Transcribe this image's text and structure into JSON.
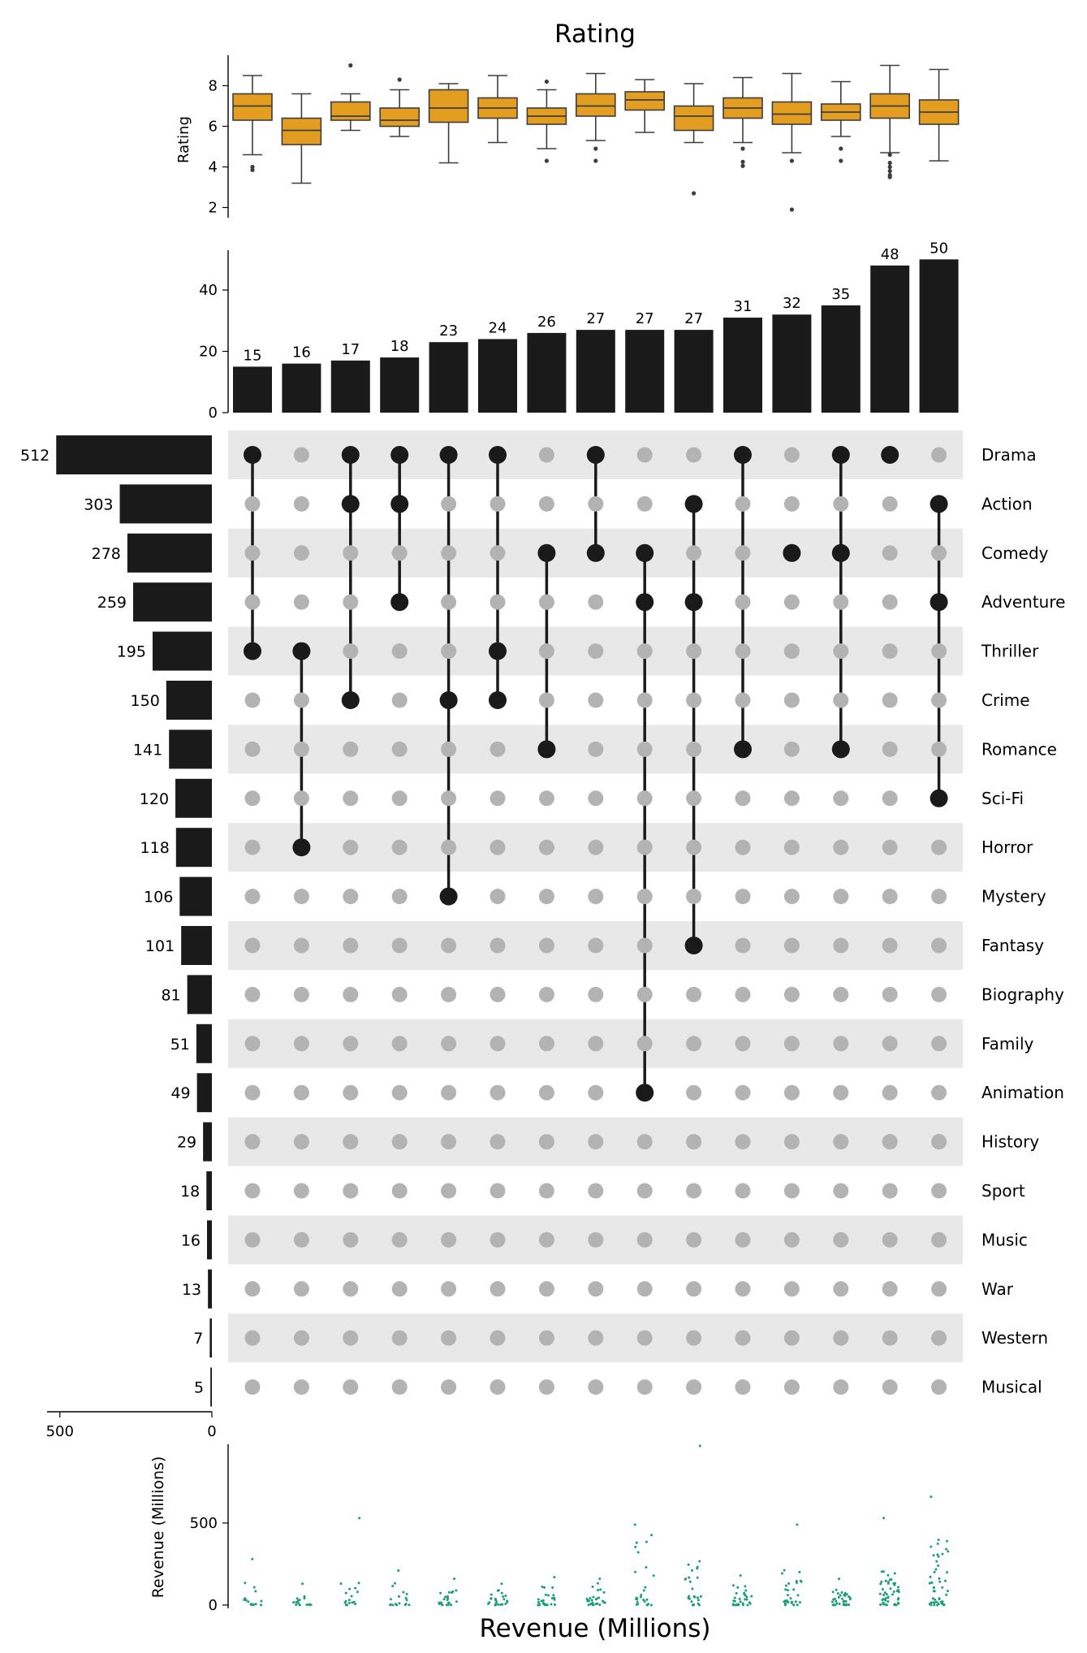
{
  "chart_data": [
    {
      "type": "box",
      "title": "Rating",
      "ylabel": "Rating",
      "ylim": [
        1.5,
        9.5
      ],
      "yticks": [
        2,
        4,
        6,
        8
      ],
      "color": "#e39e22",
      "boxes": [
        {
          "whislo": 4.6,
          "q1": 6.3,
          "med": 7.0,
          "q3": 7.6,
          "whishi": 8.5,
          "fliers": [
            4.0,
            3.85
          ]
        },
        {
          "whislo": 3.2,
          "q1": 5.1,
          "med": 5.8,
          "q3": 6.4,
          "whishi": 7.6,
          "fliers": []
        },
        {
          "whislo": 5.8,
          "q1": 6.3,
          "med": 6.5,
          "q3": 7.2,
          "whishi": 7.6,
          "fliers": [
            9.0
          ]
        },
        {
          "whislo": 5.5,
          "q1": 6.0,
          "med": 6.3,
          "q3": 6.9,
          "whishi": 7.8,
          "fliers": [
            8.3
          ]
        },
        {
          "whislo": 4.2,
          "q1": 6.2,
          "med": 6.9,
          "q3": 7.8,
          "whishi": 8.1,
          "fliers": []
        },
        {
          "whislo": 5.2,
          "q1": 6.4,
          "med": 6.9,
          "q3": 7.4,
          "whishi": 8.5,
          "fliers": []
        },
        {
          "whislo": 4.9,
          "q1": 6.1,
          "med": 6.5,
          "q3": 6.9,
          "whishi": 7.8,
          "fliers": [
            8.2,
            4.3
          ]
        },
        {
          "whislo": 5.3,
          "q1": 6.5,
          "med": 7.0,
          "q3": 7.6,
          "whishi": 8.6,
          "fliers": [
            4.9,
            4.3
          ]
        },
        {
          "whislo": 5.7,
          "q1": 6.8,
          "med": 7.3,
          "q3": 7.7,
          "whishi": 8.3,
          "fliers": []
        },
        {
          "whislo": 5.2,
          "q1": 5.8,
          "med": 6.5,
          "q3": 7.0,
          "whishi": 8.1,
          "fliers": [
            2.7
          ]
        },
        {
          "whislo": 5.2,
          "q1": 6.4,
          "med": 6.9,
          "q3": 7.4,
          "whishi": 8.4,
          "fliers": [
            4.9,
            4.25,
            4.05
          ]
        },
        {
          "whislo": 4.7,
          "q1": 6.1,
          "med": 6.6,
          "q3": 7.2,
          "whishi": 8.6,
          "fliers": [
            4.3,
            1.9
          ]
        },
        {
          "whislo": 5.5,
          "q1": 6.3,
          "med": 6.7,
          "q3": 7.1,
          "whishi": 8.2,
          "fliers": [
            4.9,
            4.3
          ]
        },
        {
          "whislo": 4.7,
          "q1": 6.4,
          "med": 7.0,
          "q3": 7.6,
          "whishi": 9.0,
          "fliers": [
            4.6,
            4.2,
            4.0,
            3.8,
            3.6,
            3.5
          ]
        },
        {
          "whislo": 4.3,
          "q1": 6.1,
          "med": 6.7,
          "q3": 7.3,
          "whishi": 8.8,
          "fliers": []
        }
      ]
    },
    {
      "type": "bar",
      "values": [
        15,
        16,
        17,
        18,
        23,
        24,
        26,
        27,
        27,
        27,
        31,
        32,
        35,
        48,
        50
      ],
      "ylim": [
        0,
        53
      ],
      "yticks": [
        0,
        20,
        40
      ],
      "color": "#1a1a1a"
    },
    {
      "type": "matrix",
      "sets": [
        "Drama",
        "Action",
        "Comedy",
        "Adventure",
        "Thriller",
        "Crime",
        "Romance",
        "Sci-Fi",
        "Horror",
        "Mystery",
        "Fantasy",
        "Biography",
        "Family",
        "Animation",
        "History",
        "Sport",
        "Music",
        "War",
        "Western",
        "Musical"
      ],
      "set_sizes": [
        512,
        303,
        278,
        259,
        195,
        150,
        141,
        120,
        118,
        106,
        101,
        81,
        51,
        49,
        29,
        18,
        16,
        13,
        7,
        5
      ],
      "size_ticks": [
        500,
        0
      ],
      "intersections": [
        [
          "Drama",
          "Thriller"
        ],
        [
          "Thriller",
          "Horror"
        ],
        [
          "Drama",
          "Action",
          "Crime"
        ],
        [
          "Drama",
          "Action",
          "Adventure"
        ],
        [
          "Drama",
          "Crime",
          "Mystery"
        ],
        [
          "Drama",
          "Thriller",
          "Crime"
        ],
        [
          "Comedy",
          "Romance"
        ],
        [
          "Drama",
          "Comedy"
        ],
        [
          "Comedy",
          "Adventure",
          "Animation"
        ],
        [
          "Action",
          "Adventure",
          "Fantasy"
        ],
        [
          "Drama",
          "Romance"
        ],
        [
          "Comedy"
        ],
        [
          "Drama",
          "Comedy",
          "Romance"
        ],
        [
          "Drama"
        ],
        [
          "Action",
          "Adventure",
          "Sci-Fi"
        ]
      ],
      "active_color": "#1a1a1a",
      "inactive_color": "#b3b3b3",
      "stripe_color": "#e8e8e8"
    },
    {
      "type": "strip",
      "xlabel": "Revenue (Millions)",
      "ylabel": "Revenue (Millions)",
      "ylim": [
        -20,
        980
      ],
      "yticks": [
        0,
        500
      ],
      "color": "#1b9e77",
      "groups": [
        {
          "n": 15,
          "max": 280,
          "typical": 60
        },
        {
          "n": 16,
          "max": 130,
          "typical": 40
        },
        {
          "n": 17,
          "max": 530,
          "typical": 60
        },
        {
          "n": 18,
          "max": 210,
          "typical": 70
        },
        {
          "n": 23,
          "max": 160,
          "typical": 40
        },
        {
          "n": 24,
          "max": 130,
          "typical": 40
        },
        {
          "n": 26,
          "max": 170,
          "typical": 50
        },
        {
          "n": 27,
          "max": 160,
          "typical": 60
        },
        {
          "n": 27,
          "max": 490,
          "typical": 180
        },
        {
          "n": 27,
          "max": 970,
          "typical": 120
        },
        {
          "n": 31,
          "max": 180,
          "typical": 50
        },
        {
          "n": 32,
          "max": 490,
          "typical": 90
        },
        {
          "n": 35,
          "max": 160,
          "typical": 40
        },
        {
          "n": 48,
          "max": 530,
          "typical": 90
        },
        {
          "n": 50,
          "max": 660,
          "typical": 170
        }
      ]
    }
  ]
}
